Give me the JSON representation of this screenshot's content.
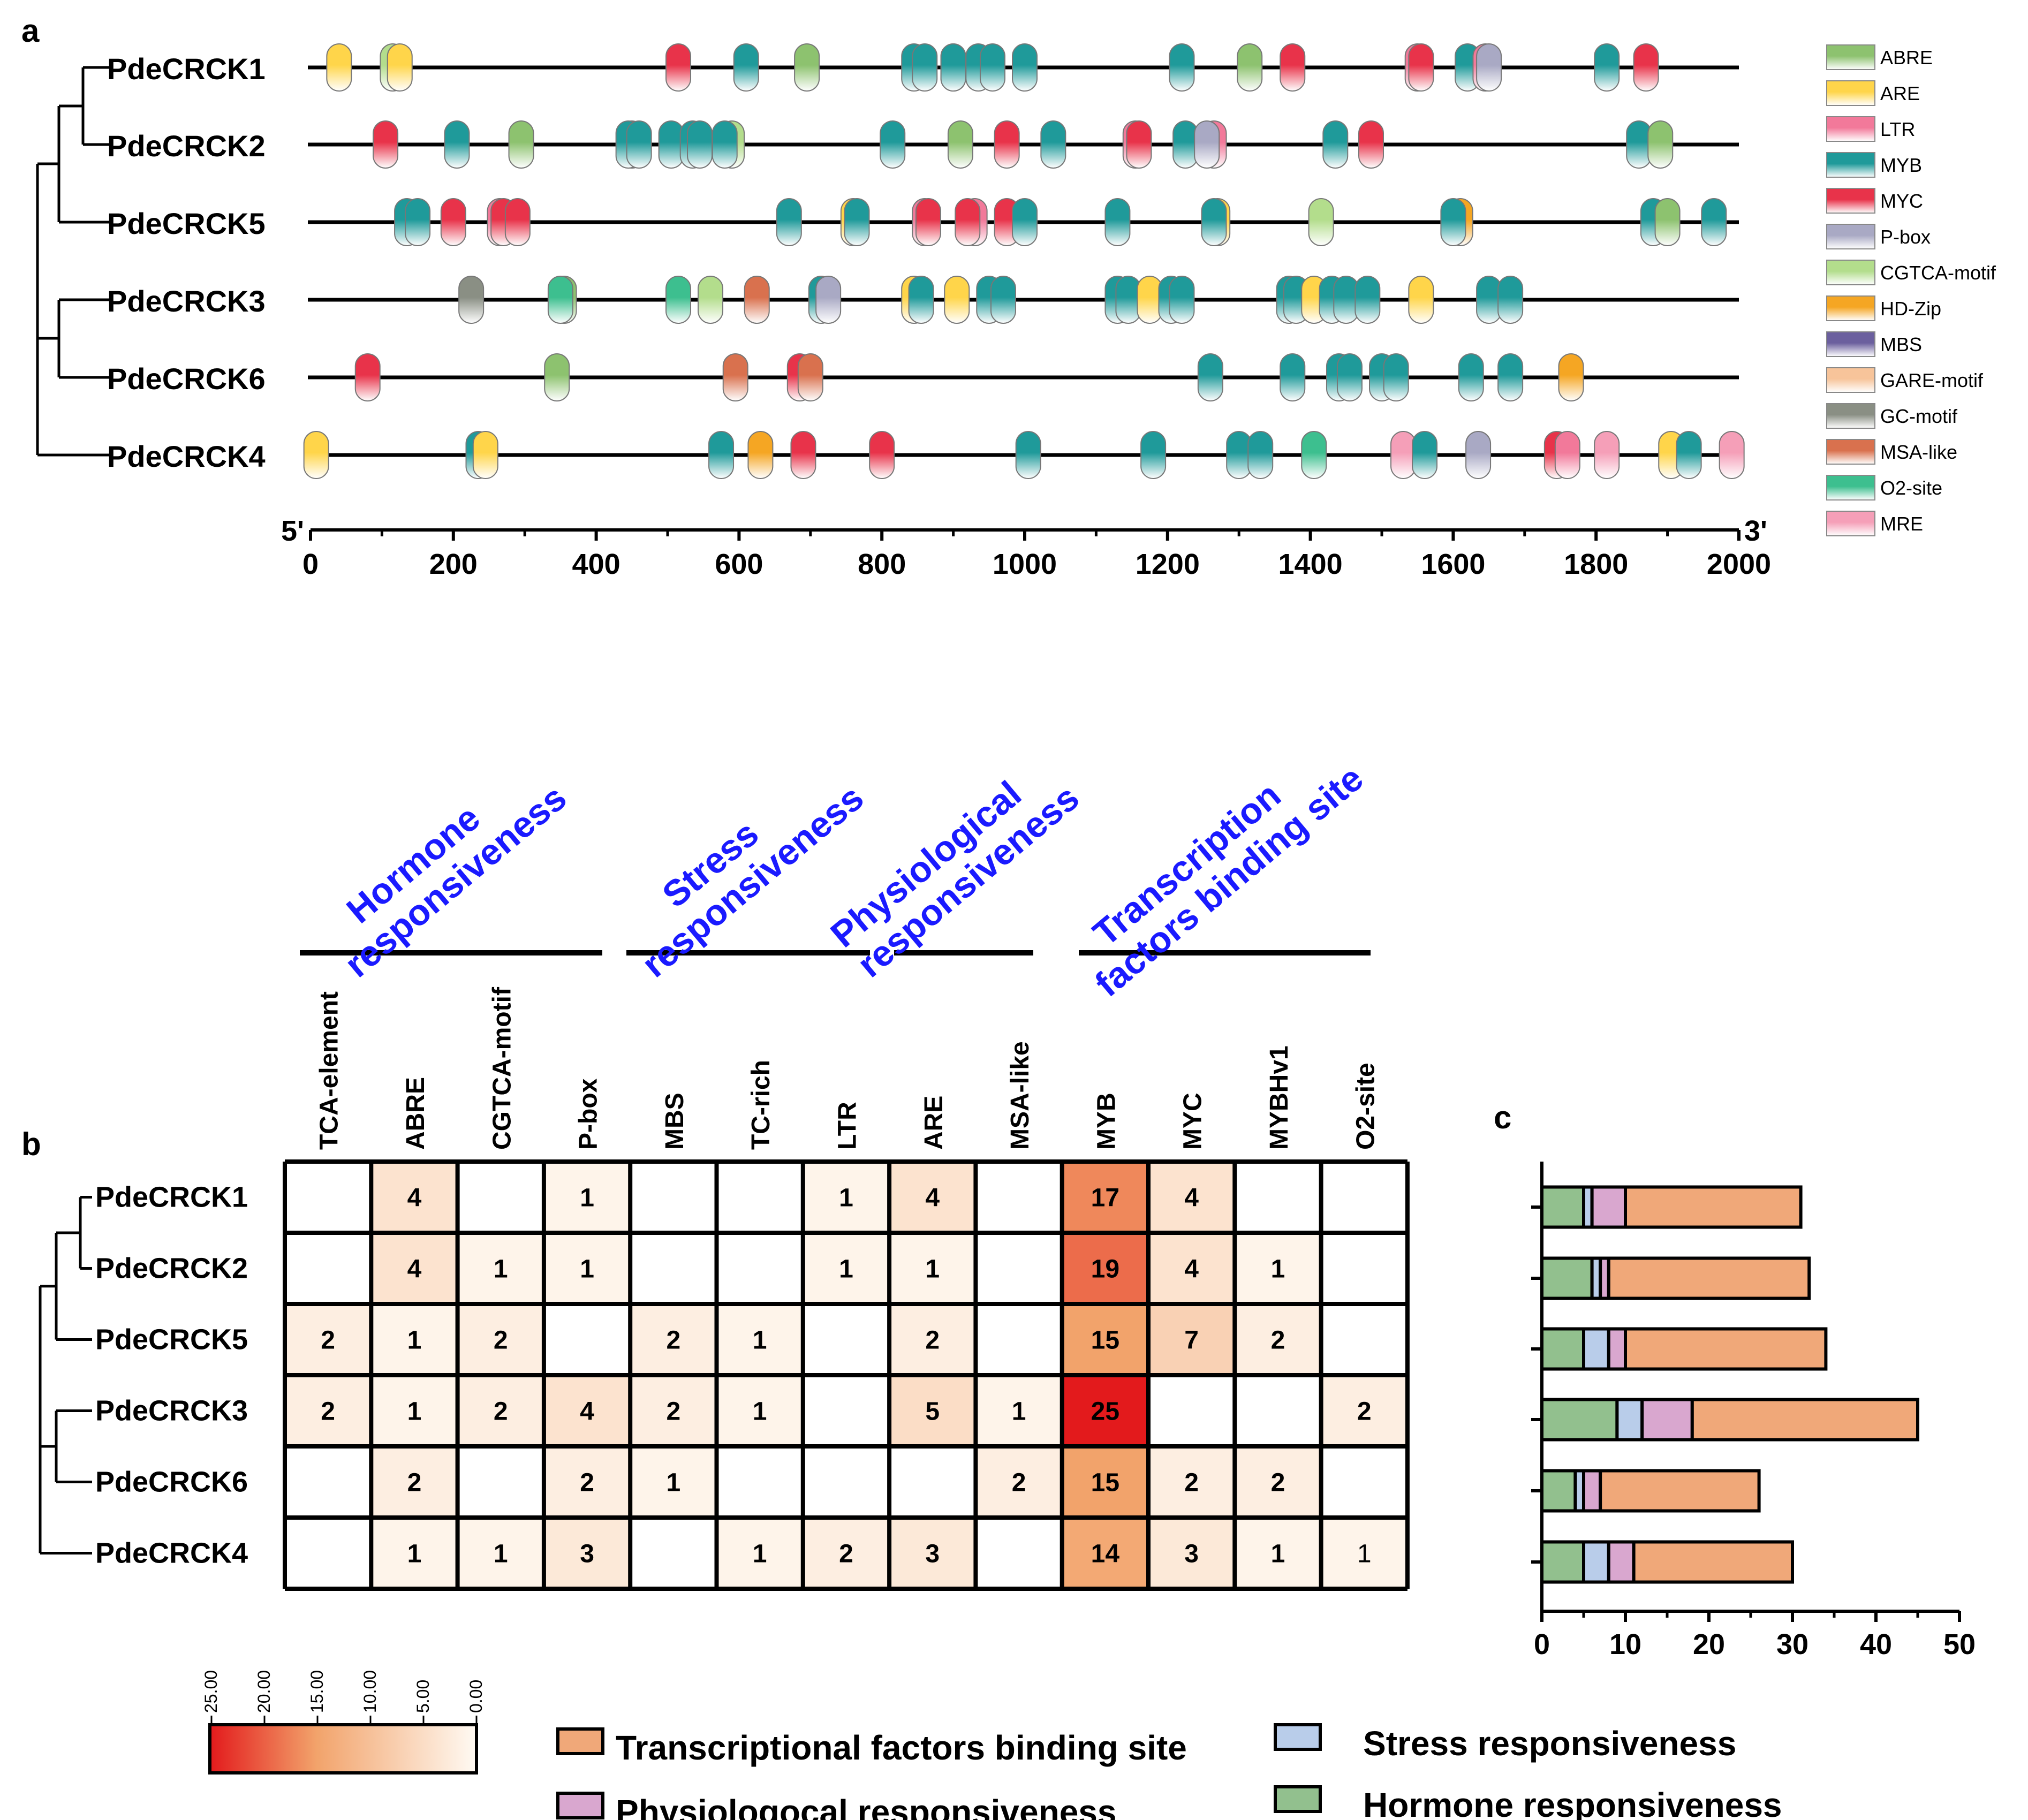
{
  "panels": {
    "a": "a",
    "b": "b",
    "c": "c"
  },
  "gene_labels": [
    "PdeCRCK1",
    "PdeCRCK2",
    "PdeCRCK5",
    "PdeCRCK3",
    "PdeCRCK6",
    "PdeCRCK4"
  ],
  "chart_data": [
    {
      "type": "scatter",
      "panel": "a",
      "description": "Promoter cis-element positions (bp) along 2000 bp upstream region",
      "x_axis": {
        "label_left": "5'",
        "label_right": "3'",
        "range": [
          0,
          2000
        ],
        "ticks": [
          "0",
          "200",
          "400",
          "600",
          "800",
          "1000",
          "1200",
          "1400",
          "1600",
          "1800",
          "2000"
        ]
      },
      "legend": [
        {
          "name": "ABRE",
          "color": "#8dc26f"
        },
        {
          "name": "ARE",
          "color": "#ffd54a"
        },
        {
          "name": "LTR",
          "color": "#f2799a"
        },
        {
          "name": "MYB",
          "color": "#1f9a9a"
        },
        {
          "name": "MYC",
          "color": "#e8334a"
        },
        {
          "name": "P-box",
          "color": "#a9a9c4"
        },
        {
          "name": "CGTCA-motif",
          "color": "#b3dd8c"
        },
        {
          "name": "HD-Zip",
          "color": "#f5a623"
        },
        {
          "name": "MBS",
          "color": "#6b5f9e"
        },
        {
          "name": "GARE-motif",
          "color": "#f7c49a"
        },
        {
          "name": "GC-motif",
          "color": "#8a8f84"
        },
        {
          "name": "MSA-like",
          "color": "#d9714e"
        },
        {
          "name": "O2-site",
          "color": "#3dbf8f"
        },
        {
          "name": "MRE",
          "color": "#f59fb8"
        }
      ],
      "genes": [
        {
          "name": "PdeCRCK1",
          "elements": [
            {
              "type": "ARE",
              "pos": 40
            },
            {
              "type": "CGTCA-motif",
              "pos": 115
            },
            {
              "type": "ARE",
              "pos": 125
            },
            {
              "type": "MYC",
              "pos": 515
            },
            {
              "type": "MYB",
              "pos": 610
            },
            {
              "type": "ABRE",
              "pos": 695
            },
            {
              "type": "MYB",
              "pos": 845
            },
            {
              "type": "MYB",
              "pos": 860
            },
            {
              "type": "ARE",
              "pos": 900
            },
            {
              "type": "MYB",
              "pos": 900
            },
            {
              "type": "MYB",
              "pos": 935
            },
            {
              "type": "MYB",
              "pos": 955
            },
            {
              "type": "MYB",
              "pos": 1000
            },
            {
              "type": "MYB",
              "pos": 1220
            },
            {
              "type": "ABRE",
              "pos": 1315
            },
            {
              "type": "MYC",
              "pos": 1375
            },
            {
              "type": "LTR",
              "pos": 1550
            },
            {
              "type": "MYC",
              "pos": 1555
            },
            {
              "type": "MYB",
              "pos": 1620
            },
            {
              "type": "LTR",
              "pos": 1645
            },
            {
              "type": "P-box",
              "pos": 1650
            },
            {
              "type": "MYB",
              "pos": 1815
            },
            {
              "type": "MYC",
              "pos": 1870
            }
          ]
        },
        {
          "name": "PdeCRCK2",
          "elements": [
            {
              "type": "MYC",
              "pos": 105
            },
            {
              "type": "MYB",
              "pos": 205
            },
            {
              "type": "ABRE",
              "pos": 295
            },
            {
              "type": "ARE",
              "pos": 450
            },
            {
              "type": "MYB",
              "pos": 445
            },
            {
              "type": "MYB",
              "pos": 460
            },
            {
              "type": "MYB",
              "pos": 505
            },
            {
              "type": "MYB",
              "pos": 535
            },
            {
              "type": "MYB",
              "pos": 545
            },
            {
              "type": "CGTCA-motif",
              "pos": 590
            },
            {
              "type": "MYB",
              "pos": 580
            },
            {
              "type": "MYB",
              "pos": 815
            },
            {
              "type": "ABRE",
              "pos": 910
            },
            {
              "type": "MYC",
              "pos": 975
            },
            {
              "type": "MYB",
              "pos": 1040
            },
            {
              "type": "LTR",
              "pos": 1155
            },
            {
              "type": "MYC",
              "pos": 1160
            },
            {
              "type": "MYB",
              "pos": 1225
            },
            {
              "type": "LTR",
              "pos": 1265
            },
            {
              "type": "P-box",
              "pos": 1255
            },
            {
              "type": "MYB",
              "pos": 1435
            },
            {
              "type": "MYC",
              "pos": 1485
            },
            {
              "type": "MYB",
              "pos": 1860
            },
            {
              "type": "ABRE",
              "pos": 1890
            }
          ]
        },
        {
          "name": "PdeCRCK5",
          "elements": [
            {
              "type": "MYB",
              "pos": 135
            },
            {
              "type": "MYB",
              "pos": 150
            },
            {
              "type": "MYC",
              "pos": 200
            },
            {
              "type": "LTR",
              "pos": 265
            },
            {
              "type": "MYC",
              "pos": 270
            },
            {
              "type": "MYC",
              "pos": 290
            },
            {
              "type": "MYB",
              "pos": 670
            },
            {
              "type": "ARE",
              "pos": 760
            },
            {
              "type": "MYB",
              "pos": 765
            },
            {
              "type": "LTR",
              "pos": 860
            },
            {
              "type": "MYC",
              "pos": 865
            },
            {
              "type": "LTR",
              "pos": 930
            },
            {
              "type": "MYC",
              "pos": 920
            },
            {
              "type": "MYC",
              "pos": 975
            },
            {
              "type": "MYB",
              "pos": 1000
            },
            {
              "type": "MYB",
              "pos": 1130
            },
            {
              "type": "ARE",
              "pos": 1270
            },
            {
              "type": "MYB",
              "pos": 1265
            },
            {
              "type": "CGTCA-motif",
              "pos": 1415
            },
            {
              "type": "HD-Zip",
              "pos": 1610
            },
            {
              "type": "MYB",
              "pos": 1600
            },
            {
              "type": "MYB",
              "pos": 1880
            },
            {
              "type": "ABRE",
              "pos": 1900
            },
            {
              "type": "MYB",
              "pos": 1965
            }
          ]
        },
        {
          "name": "PdeCRCK3",
          "elements": [
            {
              "type": "GC-motif",
              "pos": 225
            },
            {
              "type": "ABRE",
              "pos": 355
            },
            {
              "type": "O2-site",
              "pos": 350
            },
            {
              "type": "O2-site",
              "pos": 515
            },
            {
              "type": "CGTCA-motif",
              "pos": 560
            },
            {
              "type": "MSA-like",
              "pos": 625
            },
            {
              "type": "MYB",
              "pos": 715
            },
            {
              "type": "P-box",
              "pos": 725
            },
            {
              "type": "ARE",
              "pos": 845
            },
            {
              "type": "MYB",
              "pos": 855
            },
            {
              "type": "ARE",
              "pos": 905
            },
            {
              "type": "MYB",
              "pos": 950
            },
            {
              "type": "MYB",
              "pos": 970
            },
            {
              "type": "MYB",
              "pos": 1130
            },
            {
              "type": "MYB",
              "pos": 1145
            },
            {
              "type": "ARE",
              "pos": 1175
            },
            {
              "type": "MYB",
              "pos": 1205
            },
            {
              "type": "MYB",
              "pos": 1220
            },
            {
              "type": "MYB",
              "pos": 1370
            },
            {
              "type": "MYB",
              "pos": 1380
            },
            {
              "type": "ARE",
              "pos": 1405
            },
            {
              "type": "MYB",
              "pos": 1430
            },
            {
              "type": "MYB",
              "pos": 1450
            },
            {
              "type": "MYB",
              "pos": 1480
            },
            {
              "type": "ARE",
              "pos": 1555
            },
            {
              "type": "MYB",
              "pos": 1650
            },
            {
              "type": "MYB",
              "pos": 1680
            }
          ]
        },
        {
          "name": "PdeCRCK6",
          "elements": [
            {
              "type": "MYC",
              "pos": 80
            },
            {
              "type": "ABRE",
              "pos": 345
            },
            {
              "type": "MSA-like",
              "pos": 595
            },
            {
              "type": "MYC",
              "pos": 685
            },
            {
              "type": "MSA-like",
              "pos": 700
            },
            {
              "type": "MYB",
              "pos": 1260
            },
            {
              "type": "MYB",
              "pos": 1375
            },
            {
              "type": "MYB",
              "pos": 1440
            },
            {
              "type": "MYB",
              "pos": 1455
            },
            {
              "type": "MYB",
              "pos": 1500
            },
            {
              "type": "MYB",
              "pos": 1520
            },
            {
              "type": "MYB",
              "pos": 1625
            },
            {
              "type": "MYB",
              "pos": 1680
            },
            {
              "type": "HD-Zip",
              "pos": 1765
            }
          ]
        },
        {
          "name": "PdeCRCK4",
          "elements": [
            {
              "type": "ARE",
              "pos": 8
            },
            {
              "type": "MYB",
              "pos": 235
            },
            {
              "type": "ARE",
              "pos": 245
            },
            {
              "type": "MYB",
              "pos": 575
            },
            {
              "type": "HD-Zip",
              "pos": 630
            },
            {
              "type": "MYC",
              "pos": 690
            },
            {
              "type": "MYC",
              "pos": 800
            },
            {
              "type": "MYB",
              "pos": 1005
            },
            {
              "type": "MYB",
              "pos": 1180
            },
            {
              "type": "MYB",
              "pos": 1300
            },
            {
              "type": "MYB",
              "pos": 1330
            },
            {
              "type": "O2-site",
              "pos": 1405
            },
            {
              "type": "MRE",
              "pos": 1530
            },
            {
              "type": "MYB",
              "pos": 1560
            },
            {
              "type": "P-box",
              "pos": 1635
            },
            {
              "type": "MYC",
              "pos": 1745
            },
            {
              "type": "LTR",
              "pos": 1760
            },
            {
              "type": "MRE",
              "pos": 1815
            },
            {
              "type": "ARE",
              "pos": 1905
            },
            {
              "type": "MYB",
              "pos": 1930
            },
            {
              "type": "MRE",
              "pos": 1990
            }
          ]
        }
      ]
    },
    {
      "type": "heatmap",
      "panel": "b",
      "categories": [
        {
          "name": "Hormone\nresponsiveness",
          "columns": [
            "TCA-element",
            "ABRE",
            "CGTCA-motif",
            "P-box"
          ]
        },
        {
          "name": "Stress\nresponsiveness",
          "columns": [
            "MBS",
            "TC-rich",
            "LTR"
          ]
        },
        {
          "name": "Physiological\nresponsiveness",
          "columns": [
            "ARE",
            "MSA-like"
          ]
        },
        {
          "name": "Transcription\nfactors binding site",
          "columns": [
            "MYB",
            "MYC",
            "MYBHv1",
            "O2-site"
          ]
        }
      ],
      "columns": [
        "TCA-element",
        "ABRE",
        "CGTCA-motif",
        "P-box",
        "MBS",
        "TC-rich",
        "LTR",
        "ARE",
        "MSA-like",
        "MYB",
        "MYC",
        "MYBHv1",
        "O2-site"
      ],
      "rows": [
        "PdeCRCK1",
        "PdeCRCK2",
        "PdeCRCK5",
        "PdeCRCK3",
        "PdeCRCK6",
        "PdeCRCK4"
      ],
      "values": [
        [
          null,
          4,
          null,
          1,
          null,
          null,
          1,
          4,
          null,
          17,
          4,
          null,
          null
        ],
        [
          null,
          4,
          1,
          1,
          null,
          null,
          1,
          1,
          null,
          19,
          4,
          1,
          null
        ],
        [
          2,
          1,
          2,
          null,
          2,
          1,
          null,
          2,
          null,
          15,
          7,
          2,
          null
        ],
        [
          2,
          1,
          2,
          4,
          2,
          1,
          null,
          5,
          1,
          25,
          null,
          null,
          2
        ],
        [
          null,
          2,
          null,
          2,
          1,
          null,
          null,
          null,
          2,
          15,
          2,
          2,
          null
        ],
        [
          null,
          1,
          1,
          3,
          null,
          1,
          2,
          3,
          null,
          14,
          3,
          1,
          1
        ]
      ],
      "colorbar": {
        "min": 0,
        "max": 25,
        "ticks": [
          "25.00",
          "20.00",
          "15.00",
          "10.00",
          "5.00",
          "0.00"
        ],
        "low_color": "#fffaf3",
        "mid_color": "#f2a36b",
        "high_color": "#e31a1c"
      }
    },
    {
      "type": "bar",
      "panel": "c",
      "orientation": "horizontal",
      "stacked": true,
      "categories": [
        "PdeCRCK1",
        "PdeCRCK2",
        "PdeCRCK5",
        "PdeCRCK3",
        "PdeCRCK6",
        "PdeCRCK4"
      ],
      "series": [
        {
          "name": "Hormone responsiveness",
          "color": "#92c08e",
          "values": [
            5,
            6,
            5,
            9,
            4,
            5
          ]
        },
        {
          "name": "Stress responsiveness",
          "color": "#b9cdea",
          "values": [
            1,
            1,
            3,
            3,
            1,
            3
          ]
        },
        {
          "name": "Physiologocal responsiveness",
          "color": "#d9a7cf",
          "values": [
            4,
            1,
            2,
            6,
            2,
            3
          ]
        },
        {
          "name": "Transcriptional factors binding site",
          "color": "#f0a879",
          "values": [
            21,
            24,
            24,
            27,
            19,
            19
          ]
        }
      ],
      "xlim": [
        0,
        50
      ],
      "xticks": [
        "0",
        "10",
        "20",
        "30",
        "40",
        "50"
      ],
      "legend_order": [
        "Transcriptional factors binding site",
        "Physiologocal responsiveness",
        "Stress responsiveness",
        "Hormone responsiveness"
      ]
    }
  ]
}
